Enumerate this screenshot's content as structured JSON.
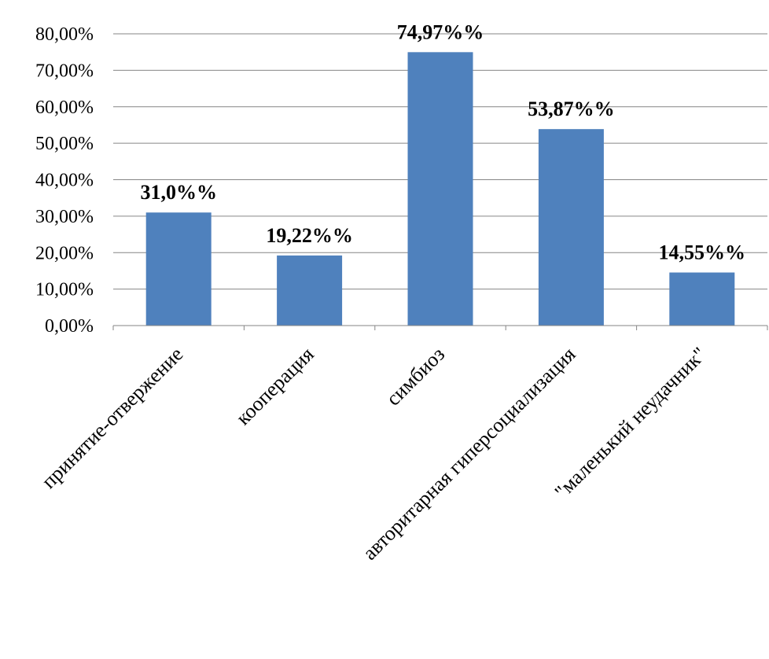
{
  "chart_data": {
    "type": "bar",
    "categories": [
      "принятие-отвержение",
      "кооперация",
      "симбиоз",
      "авторитарная гиперсоциализация",
      "\"маленький неудачник\""
    ],
    "values": [
      31.0,
      19.22,
      74.97,
      53.87,
      14.55
    ],
    "data_labels": [
      "31,0%%",
      "19,22%%",
      "74,97%%",
      "53,87%%",
      "14,55%%"
    ],
    "y_ticks": [
      "0,00%",
      "10,00%",
      "20,00%",
      "30,00%",
      "40,00%",
      "50,00%",
      "60,00%",
      "70,00%",
      "80,00%"
    ],
    "ylim": [
      0,
      80
    ],
    "y_step": 10,
    "grid": true,
    "legend": "none",
    "bar_color": "#4F81BD",
    "title": "",
    "xlabel": "",
    "ylabel": ""
  }
}
